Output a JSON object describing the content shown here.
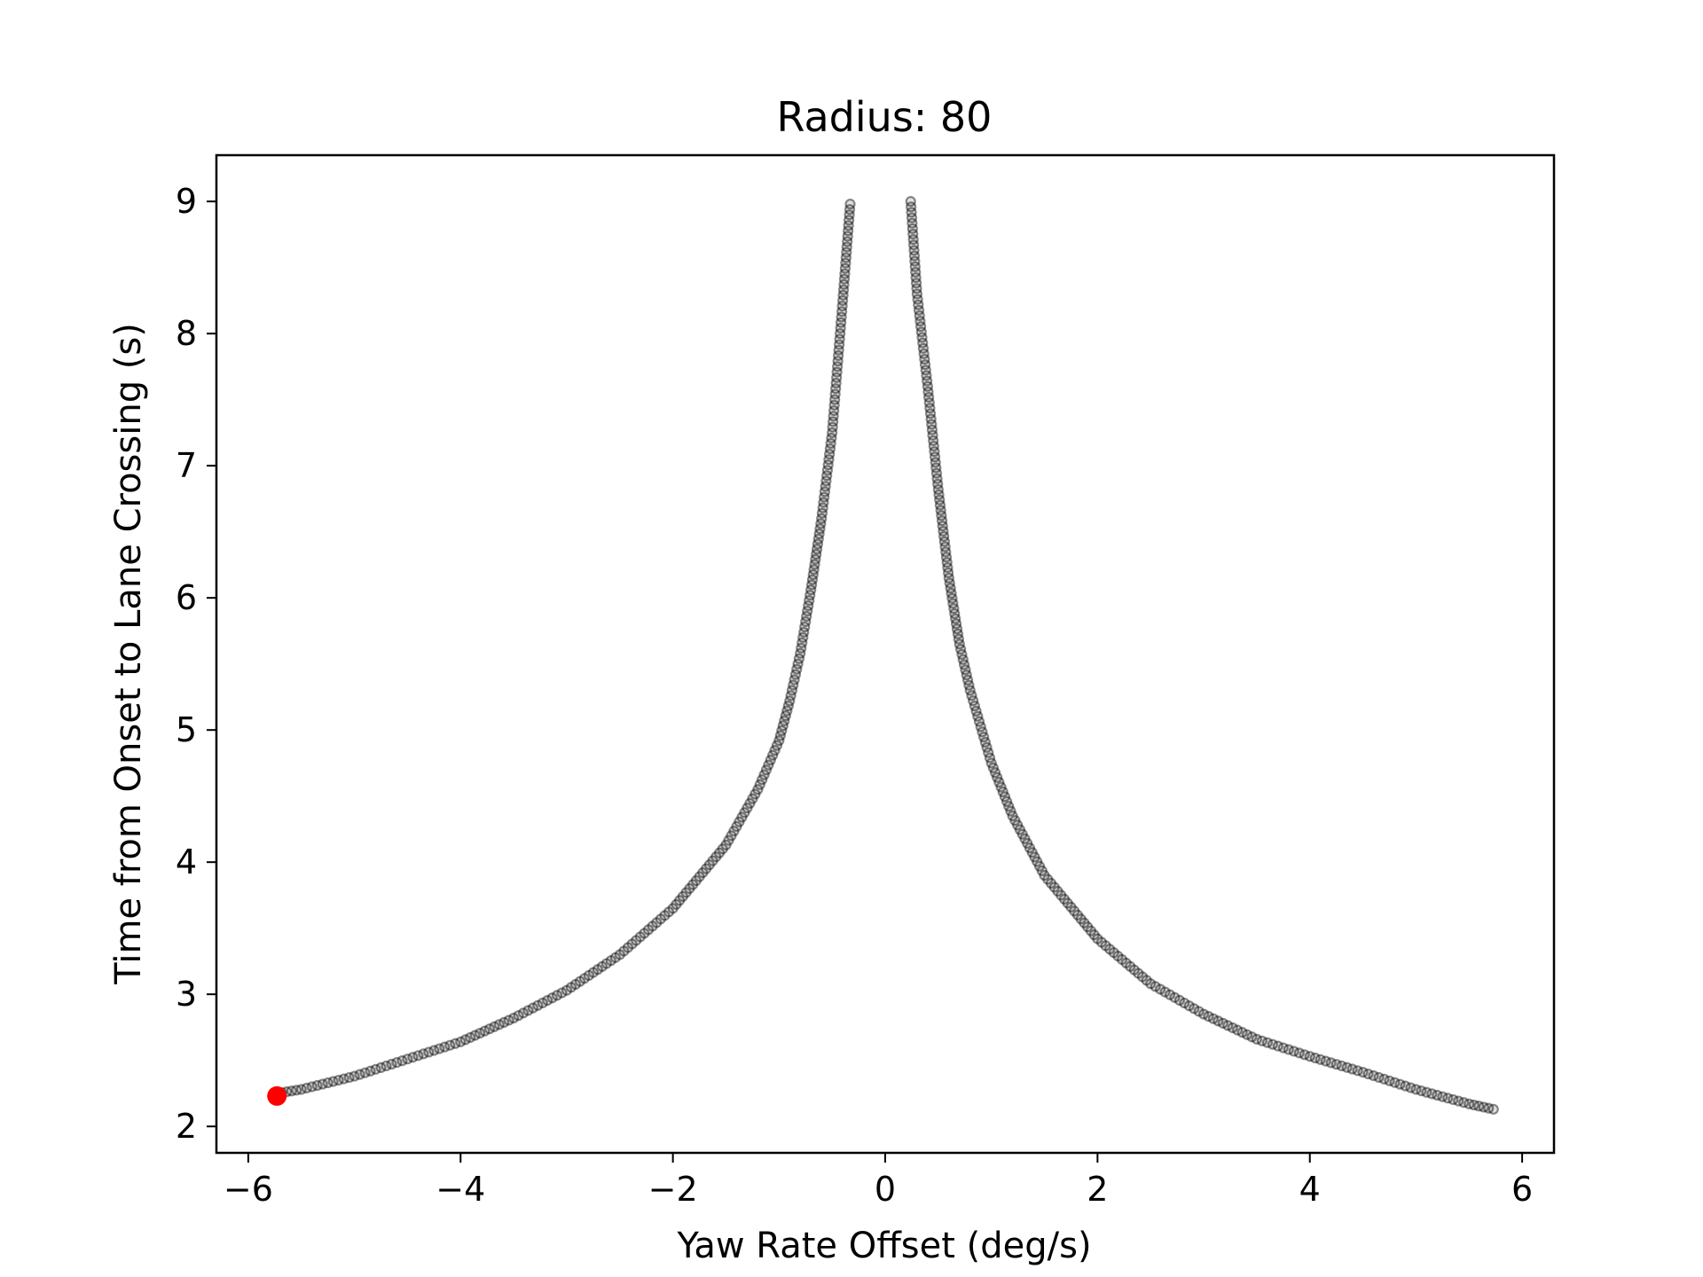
{
  "chart_data": {
    "type": "scatter",
    "title": "Radius: 80",
    "xlabel": "Yaw Rate Offset (deg/s)",
    "ylabel": "Time from Onset to Lane Crossing (s)",
    "xlim": [
      -6.3,
      6.3
    ],
    "ylim": [
      1.8,
      9.35
    ],
    "x_ticks": [
      -6,
      -4,
      -2,
      0,
      2,
      4,
      6
    ],
    "x_tick_labels": [
      "−6",
      "−4",
      "−2",
      "0",
      "2",
      "4",
      "6"
    ],
    "y_ticks": [
      2,
      3,
      4,
      5,
      6,
      7,
      8,
      9
    ],
    "y_tick_labels": [
      "2",
      "3",
      "4",
      "5",
      "6",
      "7",
      "8",
      "9"
    ],
    "grid": false,
    "series": [
      {
        "color": "#000000",
        "marker": "hollow-circle-translucent",
        "points": [
          {
            "x": -5.73,
            "y": 2.25
          },
          {
            "x": -5.5,
            "y": 2.28
          },
          {
            "x": -5.0,
            "y": 2.38
          },
          {
            "x": -4.5,
            "y": 2.51
          },
          {
            "x": -4.0,
            "y": 2.64
          },
          {
            "x": -3.5,
            "y": 2.82
          },
          {
            "x": -3.0,
            "y": 3.03
          },
          {
            "x": -2.5,
            "y": 3.3
          },
          {
            "x": -2.0,
            "y": 3.65
          },
          {
            "x": -1.5,
            "y": 4.13
          },
          {
            "x": -1.2,
            "y": 4.55
          },
          {
            "x": -1.0,
            "y": 4.92
          },
          {
            "x": -0.9,
            "y": 5.22
          },
          {
            "x": -0.8,
            "y": 5.58
          },
          {
            "x": -0.7,
            "y": 6.06
          },
          {
            "x": -0.6,
            "y": 6.6
          },
          {
            "x": -0.5,
            "y": 7.25
          },
          {
            "x": -0.45,
            "y": 7.75
          },
          {
            "x": -0.4,
            "y": 8.25
          },
          {
            "x": -0.33,
            "y": 8.98
          },
          {
            "x": 0.24,
            "y": 9.0
          },
          {
            "x": 0.3,
            "y": 8.3
          },
          {
            "x": 0.4,
            "y": 7.6
          },
          {
            "x": 0.5,
            "y": 6.82
          },
          {
            "x": 0.6,
            "y": 6.15
          },
          {
            "x": 0.7,
            "y": 5.65
          },
          {
            "x": 0.8,
            "y": 5.3
          },
          {
            "x": 1.0,
            "y": 4.75
          },
          {
            "x": 1.2,
            "y": 4.35
          },
          {
            "x": 1.5,
            "y": 3.9
          },
          {
            "x": 2.0,
            "y": 3.42
          },
          {
            "x": 2.5,
            "y": 3.08
          },
          {
            "x": 3.0,
            "y": 2.85
          },
          {
            "x": 3.5,
            "y": 2.66
          },
          {
            "x": 4.0,
            "y": 2.53
          },
          {
            "x": 4.5,
            "y": 2.41
          },
          {
            "x": 5.0,
            "y": 2.28
          },
          {
            "x": 5.5,
            "y": 2.17
          },
          {
            "x": 5.73,
            "y": 2.13
          }
        ]
      },
      {
        "color": "#ff0000",
        "marker": "filled-circle",
        "points": [
          {
            "x": -5.73,
            "y": 2.23
          }
        ]
      }
    ]
  }
}
